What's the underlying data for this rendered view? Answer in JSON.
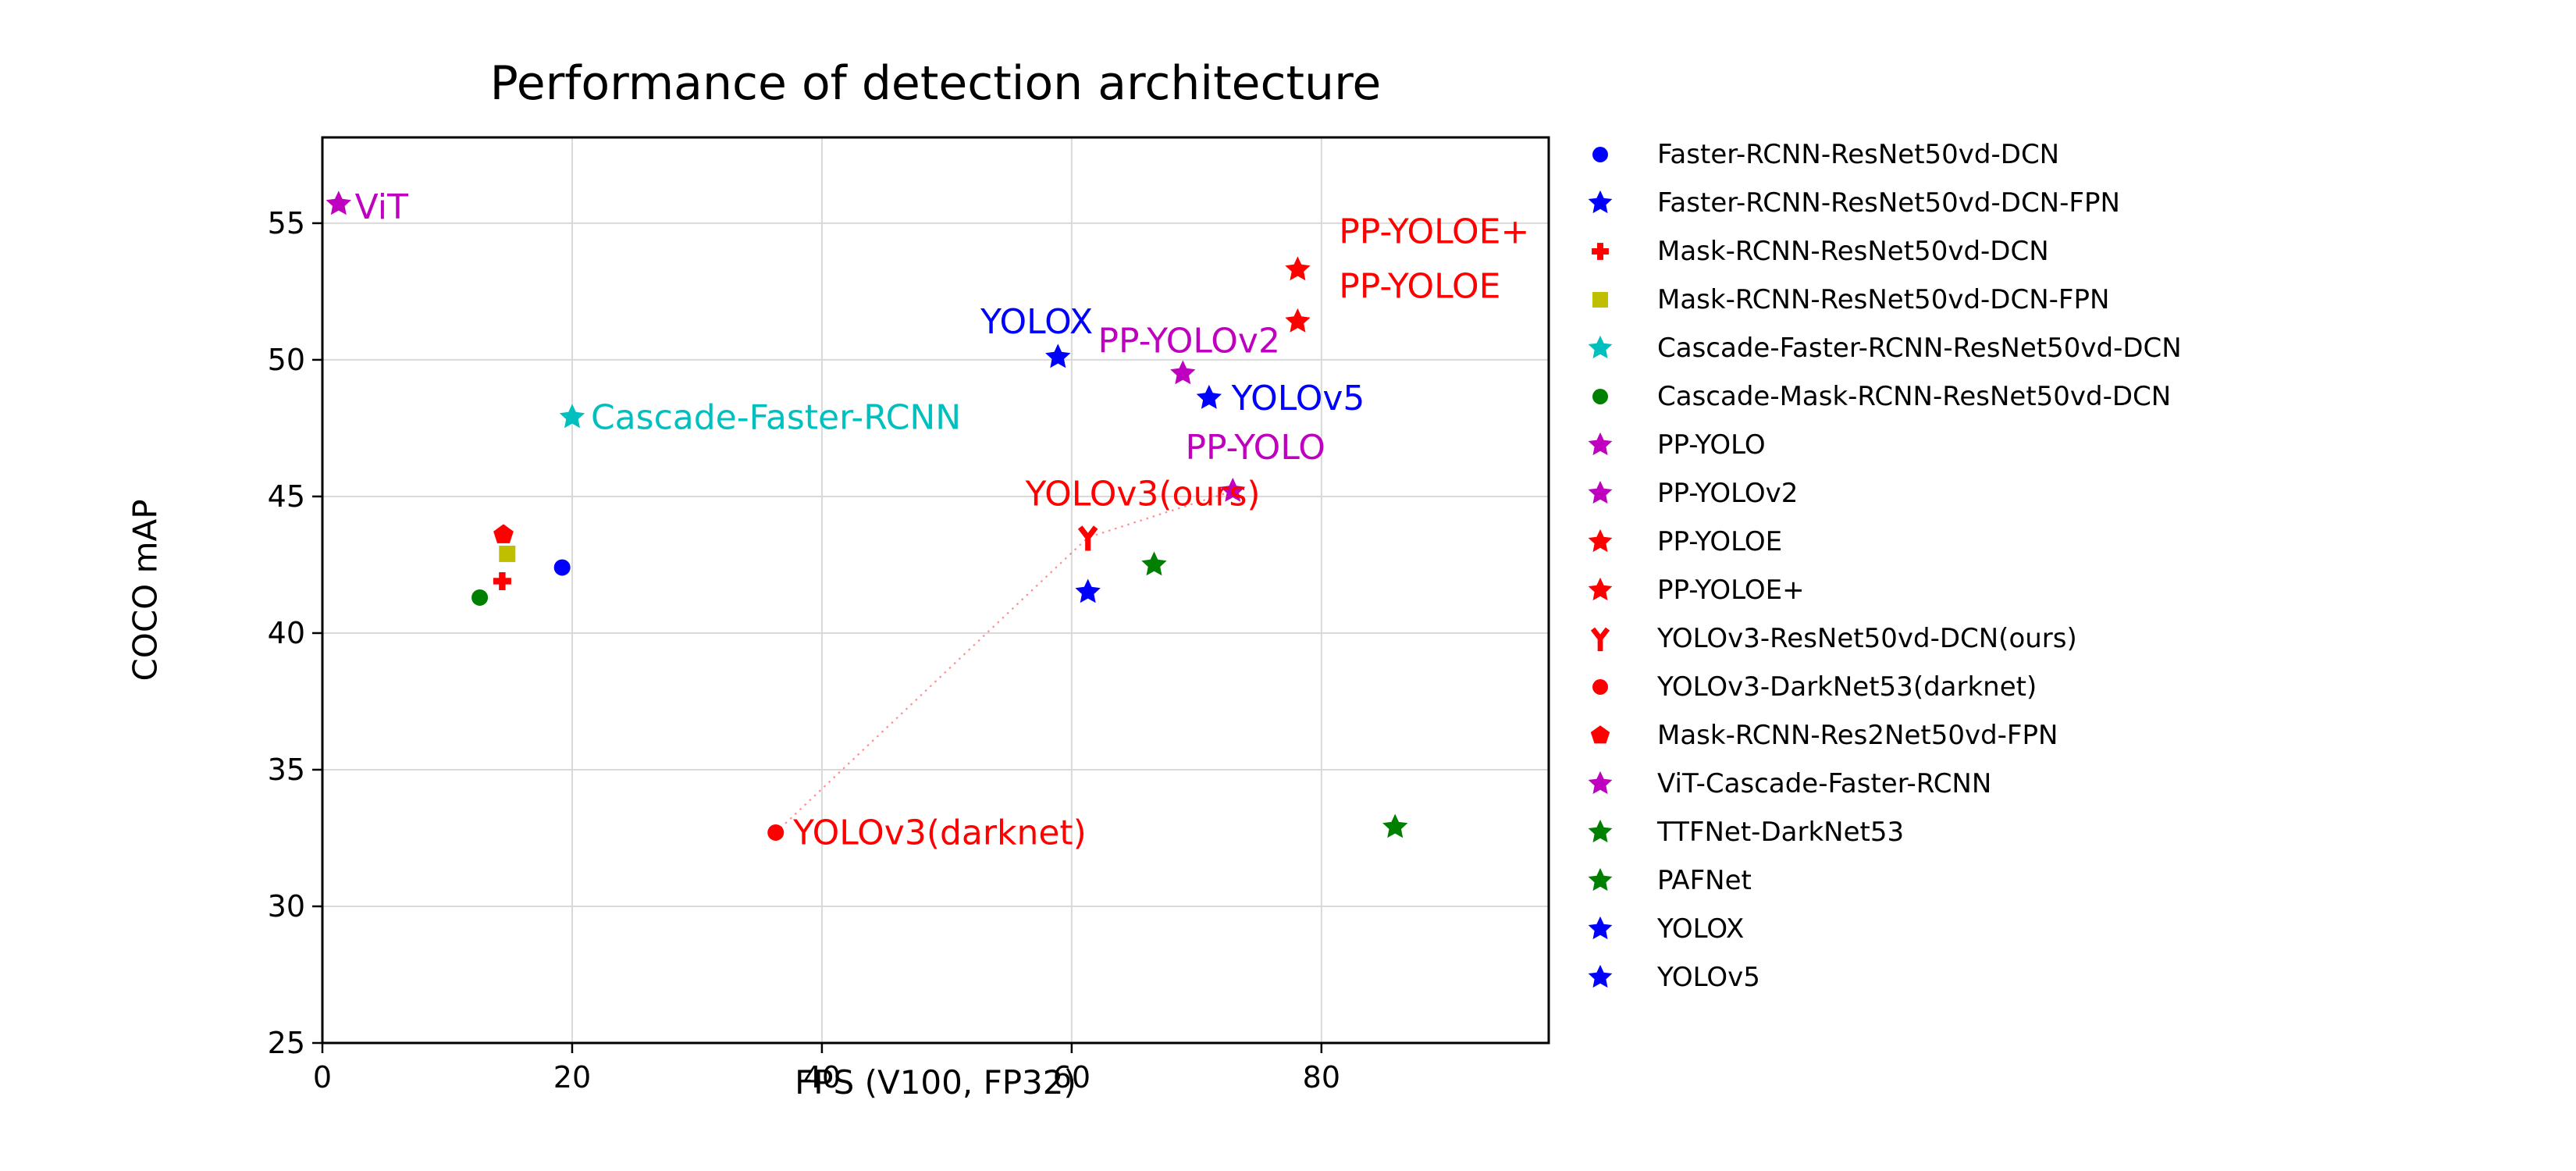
{
  "title": "Performance of detection architecture",
  "axes": {
    "xlabel": "FPS (V100, FP32)",
    "ylabel": "COCO mAP",
    "xticks": [
      0,
      20,
      40,
      60,
      80
    ],
    "yticks": [
      25,
      30,
      35,
      40,
      45,
      50,
      55
    ],
    "xlim": [
      0,
      98.2
    ],
    "ylim": [
      25,
      58.14
    ],
    "grid": true,
    "grid_color": "#d9d9d9",
    "spine_color": "#000000"
  },
  "chart_data": {
    "type": "scatter",
    "title": "Performance of detection architecture",
    "xlabel": "FPS (V100, FP32)",
    "ylabel": "COCO mAP",
    "legend_position": "right-outside",
    "series": [
      {
        "name": "Faster-RCNN-ResNet50vd-DCN",
        "marker": "circle",
        "color": "#0000FF",
        "x": 19.2,
        "y": 42.4
      },
      {
        "name": "Faster-RCNN-ResNet50vd-DCN-FPN",
        "marker": "star",
        "color": "#0000FF",
        "x": 61.3,
        "y": 41.5
      },
      {
        "name": "Mask-RCNN-ResNet50vd-DCN",
        "marker": "plus",
        "color": "#FF0000",
        "x": 14.4,
        "y": 41.9
      },
      {
        "name": "Mask-RCNN-ResNet50vd-DCN-FPN",
        "marker": "square",
        "color": "#BFBF00",
        "x": 14.8,
        "y": 42.9
      },
      {
        "name": "Cascade-Faster-RCNN-ResNet50vd-DCN",
        "marker": "star",
        "color": "#00BFBF",
        "x": 20.0,
        "y": 47.9
      },
      {
        "name": "Cascade-Mask-RCNN-ResNet50vd-DCN",
        "marker": "circle",
        "color": "#008000",
        "x": 12.6,
        "y": 41.3
      },
      {
        "name": "PP-YOLO",
        "marker": "star",
        "color": "#BF00BF",
        "x": 72.9,
        "y": 45.2
      },
      {
        "name": "PP-YOLOv2",
        "marker": "star",
        "color": "#BF00BF",
        "x": 68.9,
        "y": 49.5
      },
      {
        "name": "PP-YOLOE",
        "marker": "star",
        "color": "#FF0000",
        "x": 78.1,
        "y": 51.4
      },
      {
        "name": "PP-YOLOE+",
        "marker": "star",
        "color": "#FF0000",
        "x": 78.1,
        "y": 53.3
      },
      {
        "name": "YOLOv3-ResNet50vd-DCN(ours)",
        "marker": "tri-y",
        "color": "#FF0000",
        "x": 61.3,
        "y": 43.5
      },
      {
        "name": "YOLOv3-DarkNet53(darknet)",
        "marker": "circle",
        "color": "#FF0000",
        "x": 36.3,
        "y": 32.7
      },
      {
        "name": "Mask-RCNN-Res2Net50vd-FPN",
        "marker": "pentagon",
        "color": "#FF0000",
        "x": 14.5,
        "y": 43.6
      },
      {
        "name": "ViT-Cascade-Faster-RCNN",
        "marker": "star",
        "color": "#BF00BF",
        "x": 1.3,
        "y": 55.7
      },
      {
        "name": "TTFNet-DarkNet53",
        "marker": "star",
        "color": "#008000",
        "x": 85.9,
        "y": 32.9
      },
      {
        "name": "PAFNet",
        "marker": "star",
        "color": "#008000",
        "x": 66.6,
        "y": 42.5
      },
      {
        "name": "YOLOX",
        "marker": "star",
        "color": "#0000FF",
        "x": 58.9,
        "y": 50.1
      },
      {
        "name": "YOLOv5",
        "marker": "star",
        "color": "#0000FF",
        "x": 71.0,
        "y": 48.6
      }
    ],
    "annotations": [
      {
        "text": "ViT",
        "color": "#BF00BF",
        "x": 2.6,
        "y": 55.6
      },
      {
        "text": "Cascade-Faster-RCNN",
        "color": "#00BFBF",
        "x": 21.5,
        "y": 47.9
      },
      {
        "text": "YOLOX",
        "color": "#0000FF",
        "x": 52.7,
        "y": 51.4
      },
      {
        "text": "PP-YOLOv2",
        "color": "#BF00BF",
        "x": 62.1,
        "y": 50.7
      },
      {
        "text": "PP-YOLOE+",
        "color": "#FF0000",
        "x": 81.4,
        "y": 54.7
      },
      {
        "text": "PP-YOLOE",
        "color": "#FF0000",
        "x": 81.4,
        "y": 52.7
      },
      {
        "text": "YOLOv5",
        "color": "#0000FF",
        "x": 72.8,
        "y": 48.6
      },
      {
        "text": "PP-YOLO",
        "color": "#BF00BF",
        "x": 69.1,
        "y": 46.8
      },
      {
        "text": "YOLOv3(ours)",
        "color": "#FF0000",
        "x": 56.3,
        "y": 45.1
      },
      {
        "text": "YOLOv3(darknet)",
        "color": "#FF0000",
        "x": 37.7,
        "y": 32.7
      }
    ],
    "trend_line": {
      "color": "#FF0000",
      "opacity": 0.45,
      "style": "dotted",
      "points": [
        [
          36.3,
          32.7
        ],
        [
          61.3,
          43.5
        ],
        [
          72.9,
          45.2
        ]
      ]
    }
  }
}
